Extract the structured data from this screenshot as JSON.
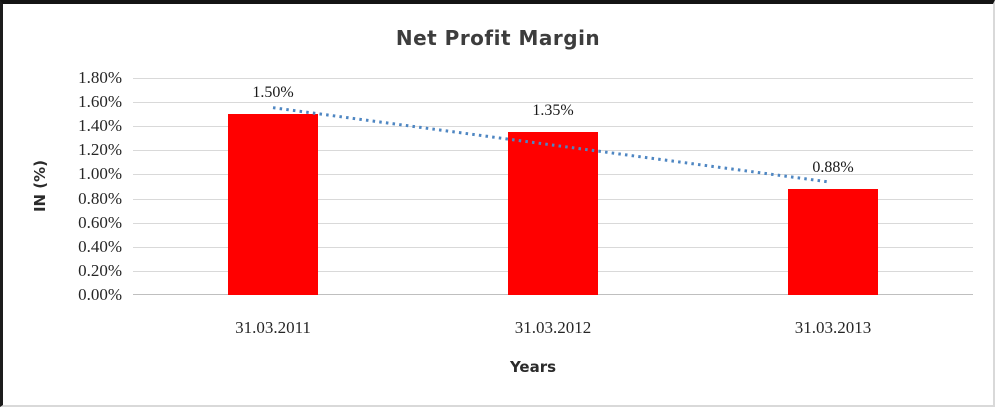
{
  "chart_data": {
    "type": "bar",
    "title": "Net Profit Margin",
    "xlabel": "Years",
    "ylabel": "IN (%)",
    "categories": [
      "31.03.2011",
      "31.03.2012",
      "31.03.2013"
    ],
    "values": [
      1.5,
      1.35,
      0.88
    ],
    "data_labels": [
      "1.50%",
      "1.35%",
      "0.88%"
    ],
    "yticks": [
      "1.80%",
      "1.60%",
      "1.40%",
      "1.20%",
      "1.00%",
      "0.80%",
      "0.60%",
      "0.40%",
      "0.20%",
      "0.00%"
    ],
    "ylim": [
      0,
      1.8
    ],
    "grid": true,
    "legend_position": "none",
    "bar_color": "#FF0000",
    "gridline_color": "#D9D9D9",
    "axis_line_color": "#BFBFBF",
    "trendline": {
      "type": "linear",
      "style": "dotted",
      "color": "#4E86C2"
    }
  }
}
